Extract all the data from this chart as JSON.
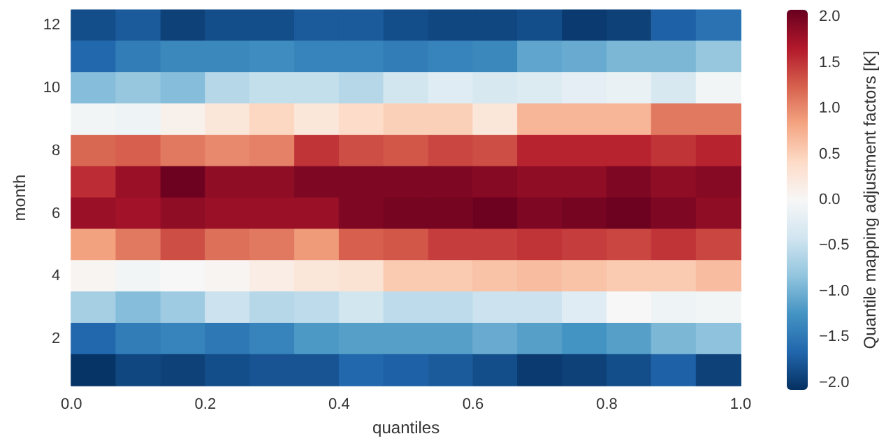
{
  "chart_data": {
    "type": "heatmap",
    "xlabel": "quantiles",
    "ylabel": "month",
    "clabel": "Quantile mapping adjustment factors [K]",
    "x": [
      0.033,
      0.1,
      0.167,
      0.233,
      0.3,
      0.367,
      0.433,
      0.5,
      0.567,
      0.633,
      0.7,
      0.767,
      0.833,
      0.9,
      0.967
    ],
    "xlim": [
      0,
      1
    ],
    "xticks": [
      {
        "value": 0,
        "label": "0.0"
      },
      {
        "value": 0.2,
        "label": "0.2"
      },
      {
        "value": 0.4,
        "label": "0.4"
      },
      {
        "value": 0.6,
        "label": "0.6"
      },
      {
        "value": 0.8,
        "label": "0.8"
      },
      {
        "value": 1,
        "label": "1.0"
      }
    ],
    "y_categories": [
      "12",
      null,
      "10",
      null,
      "8",
      null,
      "6",
      null,
      "4",
      null,
      "2",
      null
    ],
    "cells": [
      [
        -1.85,
        -1.75,
        -1.95,
        -1.85,
        -1.85,
        -1.75,
        -1.75,
        -1.85,
        -1.9,
        -1.9,
        -1.85,
        -2.0,
        -1.95,
        -1.7,
        -1.55
      ],
      [
        -1.65,
        -1.45,
        -1.35,
        -1.35,
        -1.3,
        -1.4,
        -1.4,
        -1.45,
        -1.4,
        -1.35,
        -1.1,
        -1.05,
        -0.95,
        -0.95,
        -0.8
      ],
      [
        -0.9,
        -0.8,
        -0.9,
        -0.6,
        -0.5,
        -0.5,
        -0.6,
        -0.4,
        -0.25,
        -0.35,
        -0.3,
        -0.2,
        -0.15,
        -0.35,
        -0.05
      ],
      [
        -0.05,
        -0.1,
        0.1,
        0.25,
        0.45,
        0.25,
        0.4,
        0.5,
        0.5,
        0.25,
        0.7,
        0.7,
        0.7,
        1.1,
        1.1
      ],
      [
        1.2,
        1.25,
        1.1,
        1.0,
        1.05,
        1.5,
        1.35,
        1.3,
        1.4,
        1.35,
        1.6,
        1.6,
        1.6,
        1.5,
        1.6
      ],
      [
        1.55,
        1.8,
        2.05,
        1.85,
        1.85,
        1.95,
        1.95,
        1.95,
        1.95,
        1.9,
        1.85,
        1.85,
        1.95,
        1.85,
        1.9
      ],
      [
        1.8,
        1.75,
        1.85,
        1.8,
        1.8,
        1.8,
        1.95,
        2.0,
        2.0,
        2.05,
        1.95,
        2.0,
        2.05,
        1.95,
        1.85
      ],
      [
        0.85,
        1.1,
        1.35,
        1.15,
        1.1,
        0.9,
        1.25,
        1.3,
        1.45,
        1.45,
        1.5,
        1.45,
        1.4,
        1.5,
        1.4
      ],
      [
        0.05,
        -0.05,
        0.0,
        0.05,
        0.15,
        0.25,
        0.3,
        0.55,
        0.55,
        0.6,
        0.65,
        0.6,
        0.55,
        0.55,
        0.65
      ],
      [
        -0.7,
        -0.9,
        -0.75,
        -0.45,
        -0.6,
        -0.55,
        -0.4,
        -0.55,
        -0.55,
        -0.45,
        -0.45,
        -0.25,
        0.0,
        -0.1,
        -0.05
      ],
      [
        -1.65,
        -1.45,
        -1.4,
        -1.5,
        -1.4,
        -1.2,
        -1.15,
        -1.15,
        -1.15,
        -1.05,
        -1.15,
        -1.25,
        -1.15,
        -0.95,
        -0.85
      ],
      [
        -2.05,
        -1.9,
        -1.95,
        -1.85,
        -1.8,
        -1.8,
        -1.65,
        -1.7,
        -1.75,
        -1.85,
        -2.0,
        -1.95,
        -1.85,
        -1.7,
        -1.95
      ]
    ],
    "clim": [
      -2.08,
      2.08
    ],
    "cticks": [
      {
        "value": -2,
        "label": "−2.0"
      },
      {
        "value": -1.5,
        "label": "−1.5"
      },
      {
        "value": -1,
        "label": "−1.0"
      },
      {
        "value": -0.5,
        "label": "−0.5"
      },
      {
        "value": 0,
        "label": "0.0"
      },
      {
        "value": 0.5,
        "label": "0.5"
      },
      {
        "value": 1,
        "label": "1.0"
      },
      {
        "value": 1.5,
        "label": "1.5"
      },
      {
        "value": 2,
        "label": "2.0"
      }
    ]
  }
}
